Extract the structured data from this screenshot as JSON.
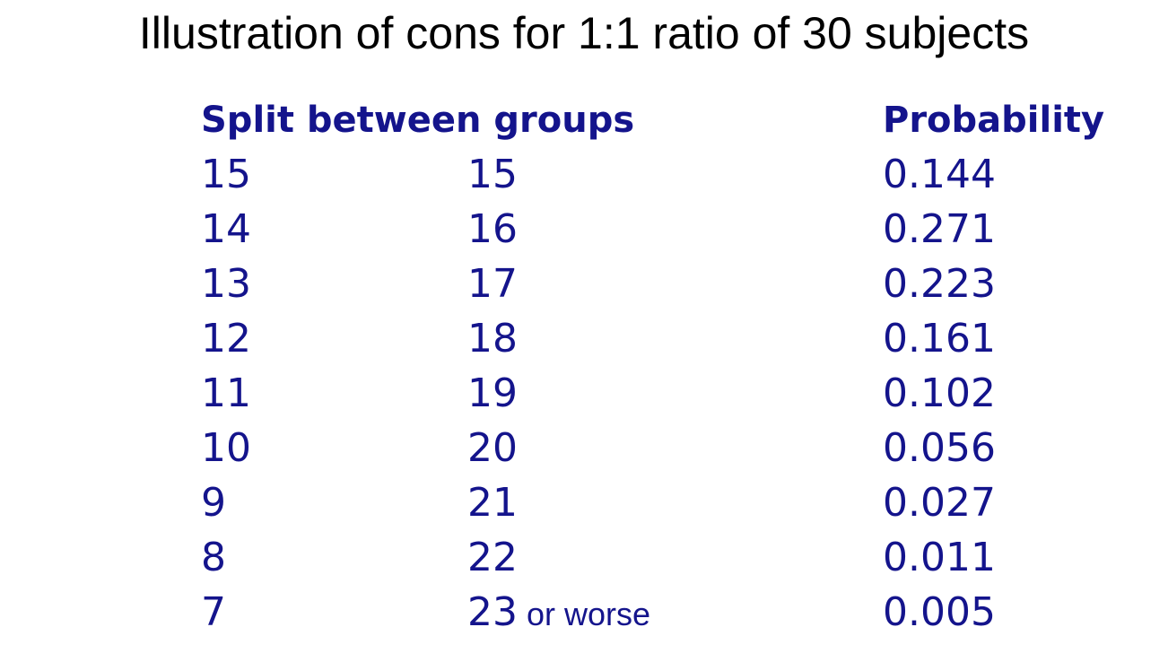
{
  "title": "Illustration of cons for 1:1 ratio of 30 subjects",
  "table": {
    "header_split": "Split between groups",
    "header_probability": "Probability",
    "text_color": "#14148c",
    "rows": [
      {
        "group_a": "15",
        "group_b": "15",
        "group_b_suffix": "",
        "probability": "0.144"
      },
      {
        "group_a": "14",
        "group_b": "16",
        "group_b_suffix": "",
        "probability": "0.271"
      },
      {
        "group_a": "13",
        "group_b": "17",
        "group_b_suffix": "",
        "probability": "0.223"
      },
      {
        "group_a": "12",
        "group_b": "18",
        "group_b_suffix": "",
        "probability": "0.161"
      },
      {
        "group_a": "11",
        "group_b": "19",
        "group_b_suffix": "",
        "probability": "0.102"
      },
      {
        "group_a": "10",
        "group_b": "20",
        "group_b_suffix": "",
        "probability": "0.056"
      },
      {
        "group_a": "9",
        "group_b": "21",
        "group_b_suffix": "",
        "probability": "0.027"
      },
      {
        "group_a": "8",
        "group_b": "22",
        "group_b_suffix": "",
        "probability": "0.011"
      },
      {
        "group_a": "7",
        "group_b": "23",
        "group_b_suffix": "or worse",
        "probability": "0.005"
      }
    ]
  }
}
